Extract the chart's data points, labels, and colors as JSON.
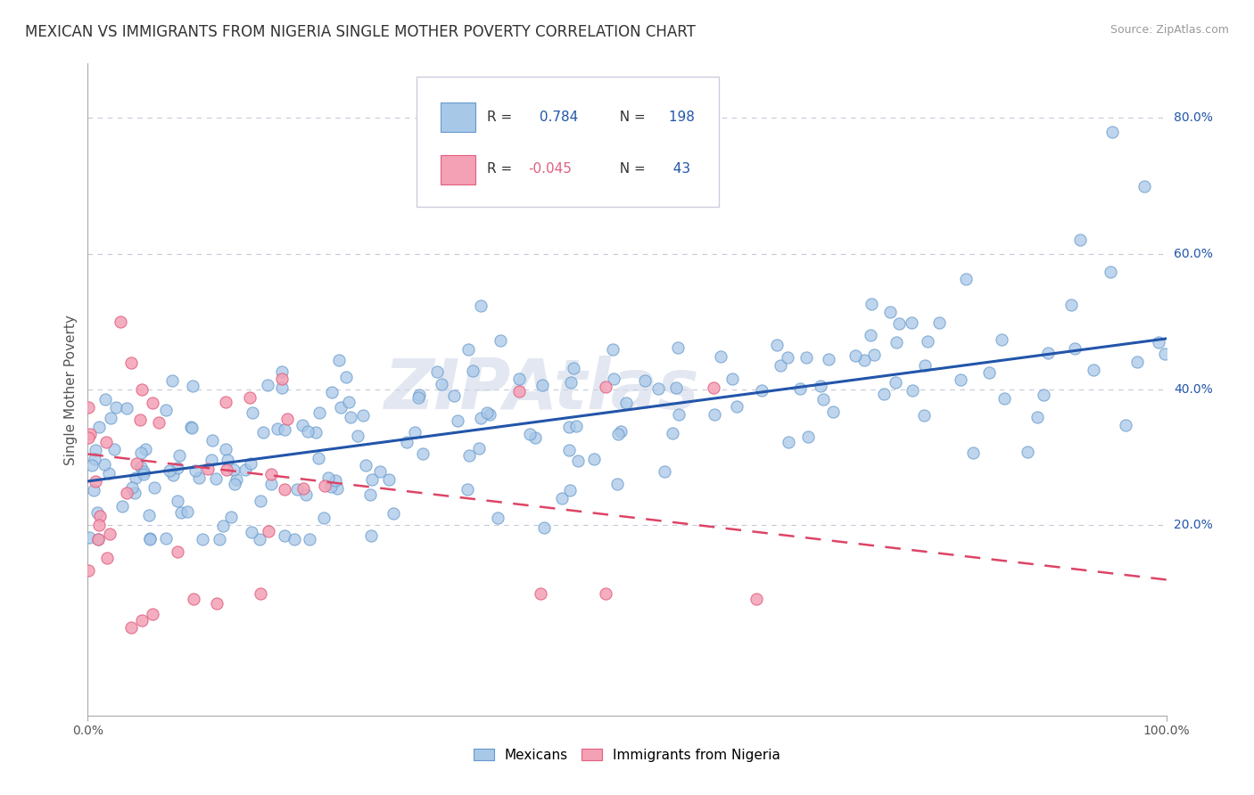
{
  "title": "MEXICAN VS IMMIGRANTS FROM NIGERIA SINGLE MOTHER POVERTY CORRELATION CHART",
  "source": "Source: ZipAtlas.com",
  "ylabel": "Single Mother Poverty",
  "xlim": [
    0.0,
    1.0
  ],
  "ylim": [
    -0.08,
    0.88
  ],
  "blue_r": 0.784,
  "blue_n": 198,
  "pink_r": -0.045,
  "pink_n": 43,
  "blue_color": "#a8c8e8",
  "pink_color": "#f4a0b5",
  "blue_edge_color": "#6699cc",
  "pink_edge_color": "#e06080",
  "blue_line_color": "#2255aa",
  "pink_line_color": "#dd4466",
  "grid_color": "#c8c8d8",
  "watermark": "ZIPAtlas",
  "legend_mexicans": "Mexicans",
  "legend_nigeria": "Immigrants from Nigeria",
  "title_fontsize": 12,
  "axis_label_fontsize": 11,
  "tick_fontsize": 10,
  "legend_fontsize": 11,
  "blue_line_start_y": 0.265,
  "blue_line_end_y": 0.475,
  "pink_line_start_y": 0.305,
  "pink_line_end_y": 0.12
}
